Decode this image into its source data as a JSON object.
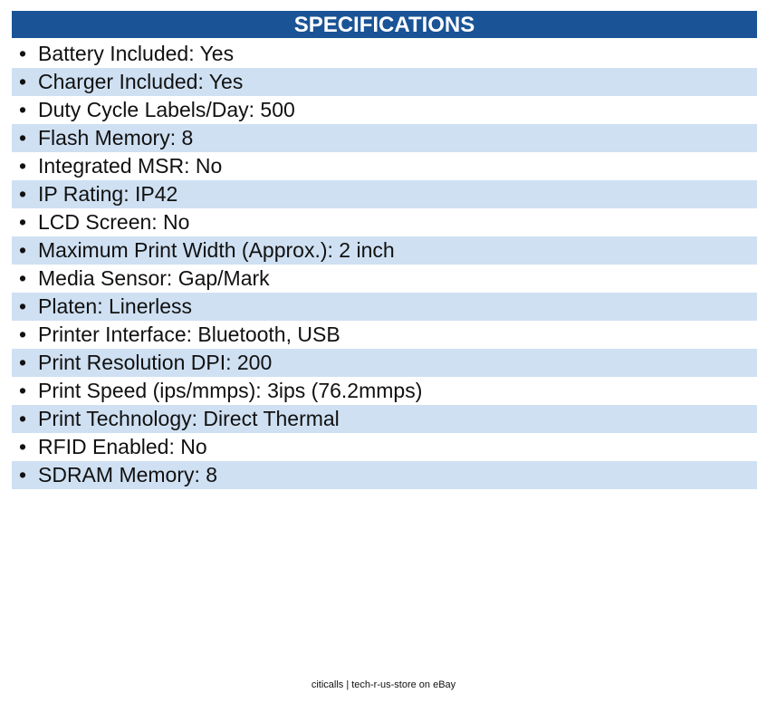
{
  "header": {
    "title": "SPECIFICATIONS"
  },
  "items": [
    "Battery Included: Yes",
    "Charger Included: Yes",
    "Duty Cycle Labels/Day: 500",
    "Flash Memory: 8",
    "Integrated MSR: No",
    "IP Rating: IP42",
    "LCD Screen: No",
    "Maximum Print Width (Approx.): 2 inch",
    "Media Sensor: Gap/Mark",
    "Platen: Linerless",
    "Printer Interface: Bluetooth, USB",
    "Print Resolution DPI: 200",
    "Print Speed (ips/mmps): 3ips (76.2mmps)",
    "Print Technology: Direct Thermal",
    "RFID Enabled: No",
    "SDRAM Memory: 8"
  ],
  "footer": {
    "text": "citicalls | tech-r-us-store on eBay"
  }
}
